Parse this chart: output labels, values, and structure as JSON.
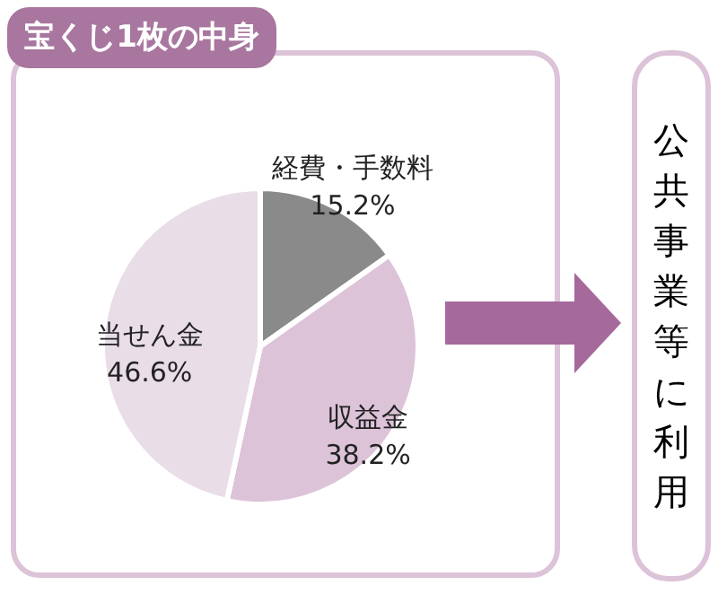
{
  "chart_data": {
    "type": "pie",
    "title": "宝くじ1枚の中身",
    "categories": [
      "経費・手数料",
      "収益金",
      "当せん金"
    ],
    "values": [
      15.2,
      38.2,
      46.6
    ],
    "colors": [
      "#8a8a8a",
      "#dcc3d8",
      "#e9dde8"
    ],
    "value_labels": [
      "15.2%",
      "38.2%",
      "46.6%"
    ],
    "annotations": [
      "公共事業等に利用"
    ],
    "legend": false
  }
}
